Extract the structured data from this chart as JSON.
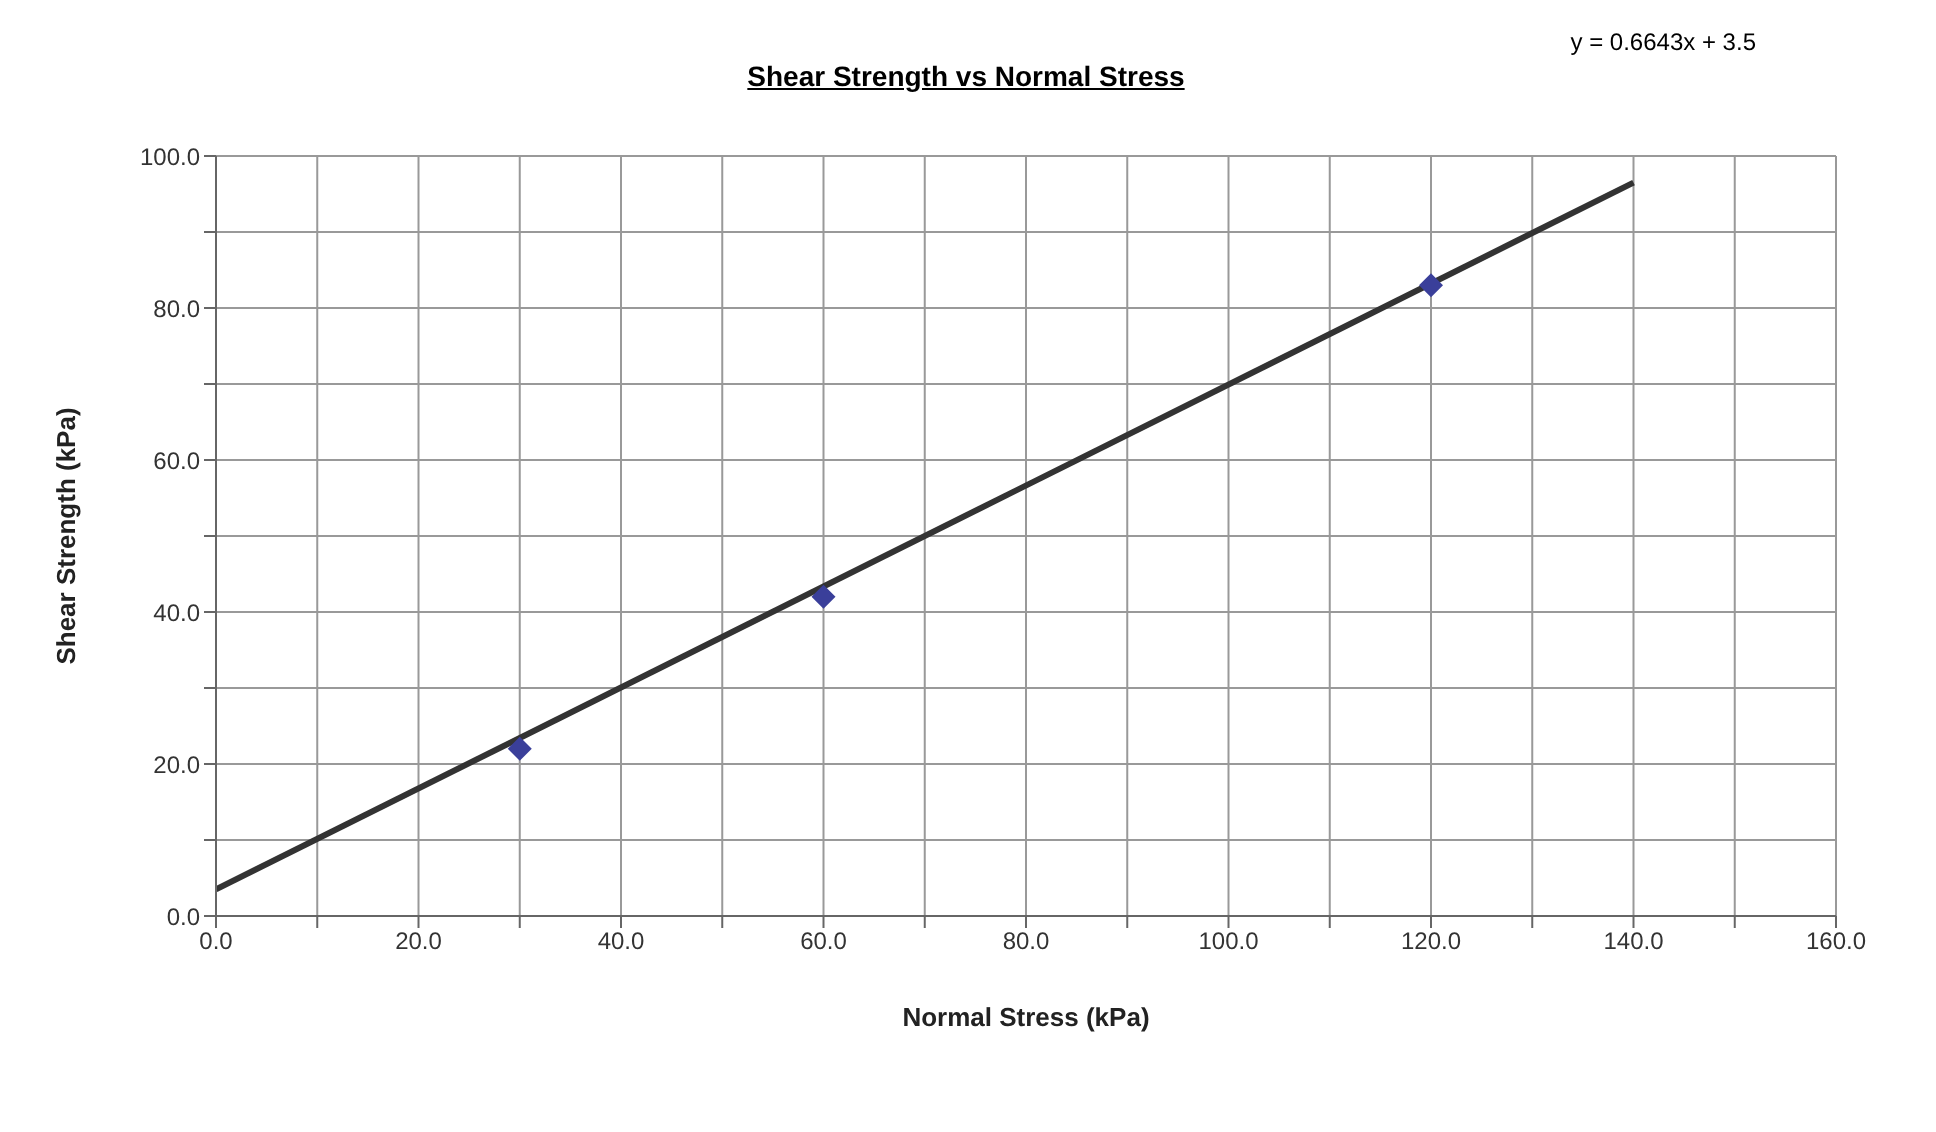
{
  "chart_data": {
    "type": "scatter",
    "title": "Shear Strength vs Normal Stress",
    "xlabel": "Normal Stress (kPa)",
    "ylabel": "Shear Strength (kPa)",
    "annotations": [
      "y = 0.6643x + 3.5"
    ],
    "series": [
      {
        "color": "#3a3f9a",
        "marker": "diamond",
        "x": [
          30,
          60,
          120
        ],
        "values": [
          22,
          42,
          83
        ]
      },
      {
        "type": "line",
        "color": "#333333",
        "marker": "none",
        "x": [
          0,
          140
        ],
        "values": [
          3.5,
          96.5
        ]
      }
    ],
    "xlim": [
      0,
      160
    ],
    "ylim": [
      0,
      100
    ],
    "xticks": [
      {
        "value": 0,
        "label": "0.0"
      },
      {
        "value": 10,
        "label": null
      },
      {
        "value": 20,
        "label": "20.0"
      },
      {
        "value": 30,
        "label": null
      },
      {
        "value": 40,
        "label": "40.0"
      },
      {
        "value": 50,
        "label": null
      },
      {
        "value": 60,
        "label": "60.0"
      },
      {
        "value": 70,
        "label": null
      },
      {
        "value": 80,
        "label": "80.0"
      },
      {
        "value": 90,
        "label": null
      },
      {
        "value": 100,
        "label": "100.0"
      },
      {
        "value": 110,
        "label": null
      },
      {
        "value": 120,
        "label": "120.0"
      },
      {
        "value": 130,
        "label": null
      },
      {
        "value": 140,
        "label": "140.0"
      },
      {
        "value": 150,
        "label": null
      },
      {
        "value": 160,
        "label": "160.0"
      }
    ],
    "yticks": [
      {
        "value": 0,
        "label": "0.0"
      },
      {
        "value": 10,
        "label": null
      },
      {
        "value": 20,
        "label": "20.0"
      },
      {
        "value": 30,
        "label": null
      },
      {
        "value": 40,
        "label": "40.0"
      },
      {
        "value": 50,
        "label": null
      },
      {
        "value": 60,
        "label": "60.0"
      },
      {
        "value": 70,
        "label": null
      },
      {
        "value": 80,
        "label": "80.0"
      },
      {
        "value": 90,
        "label": null
      },
      {
        "value": 100,
        "label": "100.0"
      }
    ],
    "grid": true
  }
}
